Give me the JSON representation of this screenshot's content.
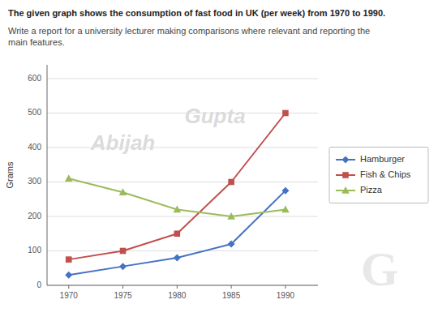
{
  "chart_data": {
    "type": "line",
    "title": "The given graph shows the consumption of fast food in UK (per week) from 1970 to 1990.",
    "subtitle": "Write a report for a university lecturer making comparisons where relevant and reporting the\nmain features.",
    "y_label": "Grams",
    "x": [
      1970,
      1975,
      1980,
      1985,
      1990
    ],
    "series": [
      {
        "name": "Hamburger",
        "color": "#4472C4",
        "marker": "diamond",
        "values": [
          30,
          55,
          80,
          120,
          275
        ]
      },
      {
        "name": "Fish & Chips",
        "color": "#C0504D",
        "marker": "square",
        "values": [
          75,
          100,
          150,
          300,
          500
        ]
      },
      {
        "name": "Pizza",
        "color": "#9BBB59",
        "marker": "triangle",
        "values": [
          310,
          270,
          220,
          200,
          220
        ]
      }
    ],
    "xlim": [
      1968,
      1993
    ],
    "xticks": [
      1970,
      1975,
      1980,
      1985,
      1990
    ],
    "ylim": [
      0,
      640
    ],
    "yticks": [
      0,
      100,
      200,
      300,
      400,
      500,
      600
    ],
    "grid": true,
    "legend": "right",
    "annotations": [
      "Abijah",
      "Gupta",
      "G"
    ]
  }
}
